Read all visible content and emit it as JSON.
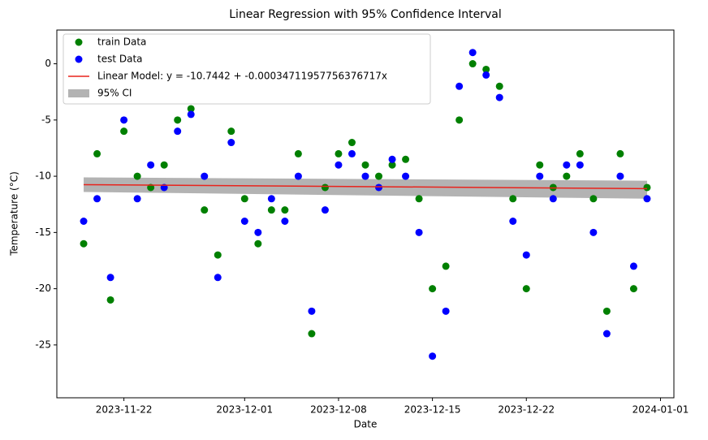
{
  "chart_data": {
    "type": "scatter",
    "title": "Linear Regression with 95% Confidence Interval",
    "x_label": "Date",
    "y_label": "Temperature (°C)",
    "x": [
      "2023-11-19",
      "2023-11-20",
      "2023-11-21",
      "2023-11-22",
      "2023-11-23",
      "2023-11-24",
      "2023-11-25",
      "2023-11-26",
      "2023-11-27",
      "2023-11-28",
      "2023-11-29",
      "2023-11-30",
      "2023-12-01",
      "2023-12-02",
      "2023-12-03",
      "2023-12-04",
      "2023-12-05",
      "2023-12-06",
      "2023-12-07",
      "2023-12-08",
      "2023-12-09",
      "2023-12-10",
      "2023-12-11",
      "2023-12-12",
      "2023-12-13",
      "2023-12-14",
      "2023-12-15",
      "2023-12-16",
      "2023-12-17",
      "2023-12-18",
      "2023-12-19",
      "2023-12-20",
      "2023-12-21",
      "2023-12-22",
      "2023-12-23",
      "2023-12-24",
      "2023-12-25",
      "2023-12-26",
      "2023-12-27",
      "2023-12-28",
      "2023-12-29",
      "2023-12-30",
      "2023-12-31"
    ],
    "series": [
      {
        "name": "train Data",
        "color": "#008000",
        "values": [
          -16,
          -8,
          -21,
          -6,
          -10,
          -11,
          -9,
          -5,
          -4,
          -13,
          -17,
          -6,
          -12,
          -16,
          -13,
          -13,
          -8,
          -24,
          -11,
          -8,
          -7,
          -9,
          -10,
          -9,
          -8.5,
          -12,
          -20,
          -18,
          -5,
          0,
          -0.5,
          -2,
          -12,
          -20,
          -9,
          -11,
          -10,
          -8,
          -12,
          -22,
          -8,
          -20,
          -11
        ]
      },
      {
        "name": "test Data",
        "color": "#0000ff",
        "values": [
          -14,
          -12,
          -19,
          -5,
          -12,
          -9,
          -11,
          -6,
          -4.5,
          -10,
          -19,
          -7,
          -14,
          -15,
          -12,
          -14,
          -10,
          -22,
          -13,
          -9,
          -8,
          -10,
          -11,
          -8.5,
          -10,
          -15,
          -26,
          -22,
          -2,
          1,
          -1,
          -3,
          -14,
          -17,
          -10,
          -12,
          -9,
          -9,
          -15,
          -24,
          -10,
          -18,
          -12
        ]
      }
    ],
    "regression": {
      "name": "Linear Model: y = -10.7442 + -0.00034711957756376717x",
      "color": "#e8231c",
      "x": [
        "2023-11-19",
        "2023-12-31"
      ],
      "values": [
        -10.75,
        -11.1
      ]
    },
    "ci": {
      "name": "95% CI",
      "color": "#999999",
      "x": [
        "2023-11-19",
        "2023-12-31"
      ],
      "lower": [
        -11.4,
        -12.0
      ],
      "upper": [
        -10.1,
        -10.4
      ]
    },
    "xlim": [
      "2023-11-17",
      "2024-01-02"
    ],
    "xticks": [
      "2023-11-22",
      "2023-12-01",
      "2023-12-08",
      "2023-12-15",
      "2023-12-22",
      "2024-01-01"
    ],
    "ylim": [
      -29.7,
      3
    ],
    "yticks": [
      -25,
      -20,
      -15,
      -10,
      -5,
      0
    ],
    "legend": "upper left"
  }
}
